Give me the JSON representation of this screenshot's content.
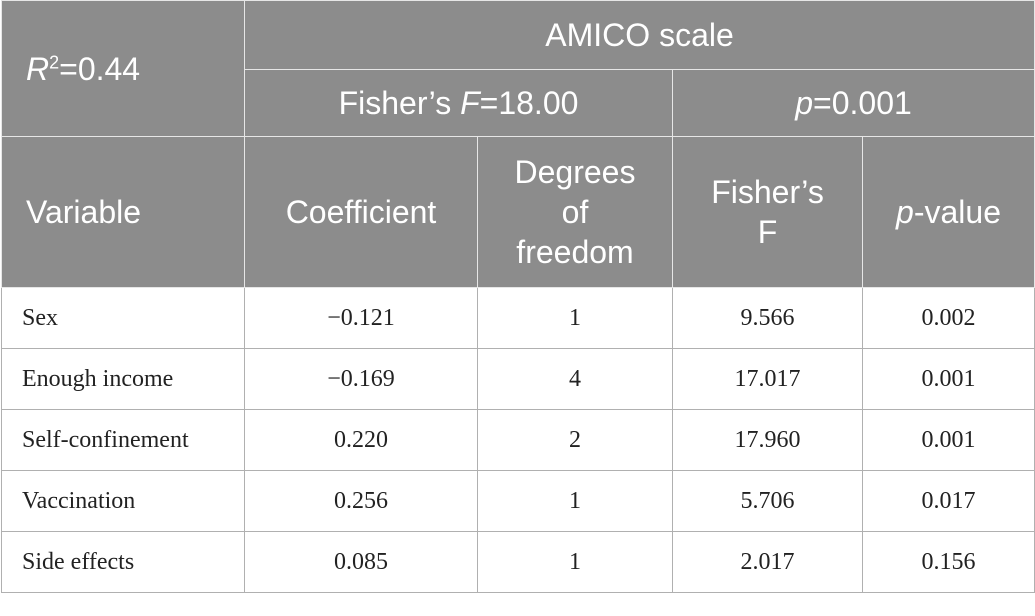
{
  "header": {
    "r_squared": {
      "symbol": "R",
      "superscript": "2",
      "rest": "=0.44"
    },
    "scale": "AMICO scale",
    "fisher": {
      "prefix": "Fisher’s ",
      "symbol": "F",
      "rest": "=18.00"
    },
    "p": {
      "symbol": "p",
      "rest": "=0.001"
    }
  },
  "table": {
    "columns": [
      "Variable",
      "Coefficient",
      "Degrees of freedom",
      "Fisher’s F",
      {
        "symbol": "p",
        "rest": "-value"
      }
    ],
    "rows": [
      [
        "Sex",
        "−0.121",
        "1",
        "9.566",
        "0.002"
      ],
      [
        "Enough income",
        "−0.169",
        "4",
        "17.017",
        "0.001"
      ],
      [
        "Self-confinement",
        "0.220",
        "2",
        "17.960",
        "0.001"
      ],
      [
        "Vaccination",
        "0.256",
        "1",
        "5.706",
        "0.017"
      ],
      [
        "Side effects",
        "0.085",
        "1",
        "2.017",
        "0.156"
      ]
    ]
  }
}
